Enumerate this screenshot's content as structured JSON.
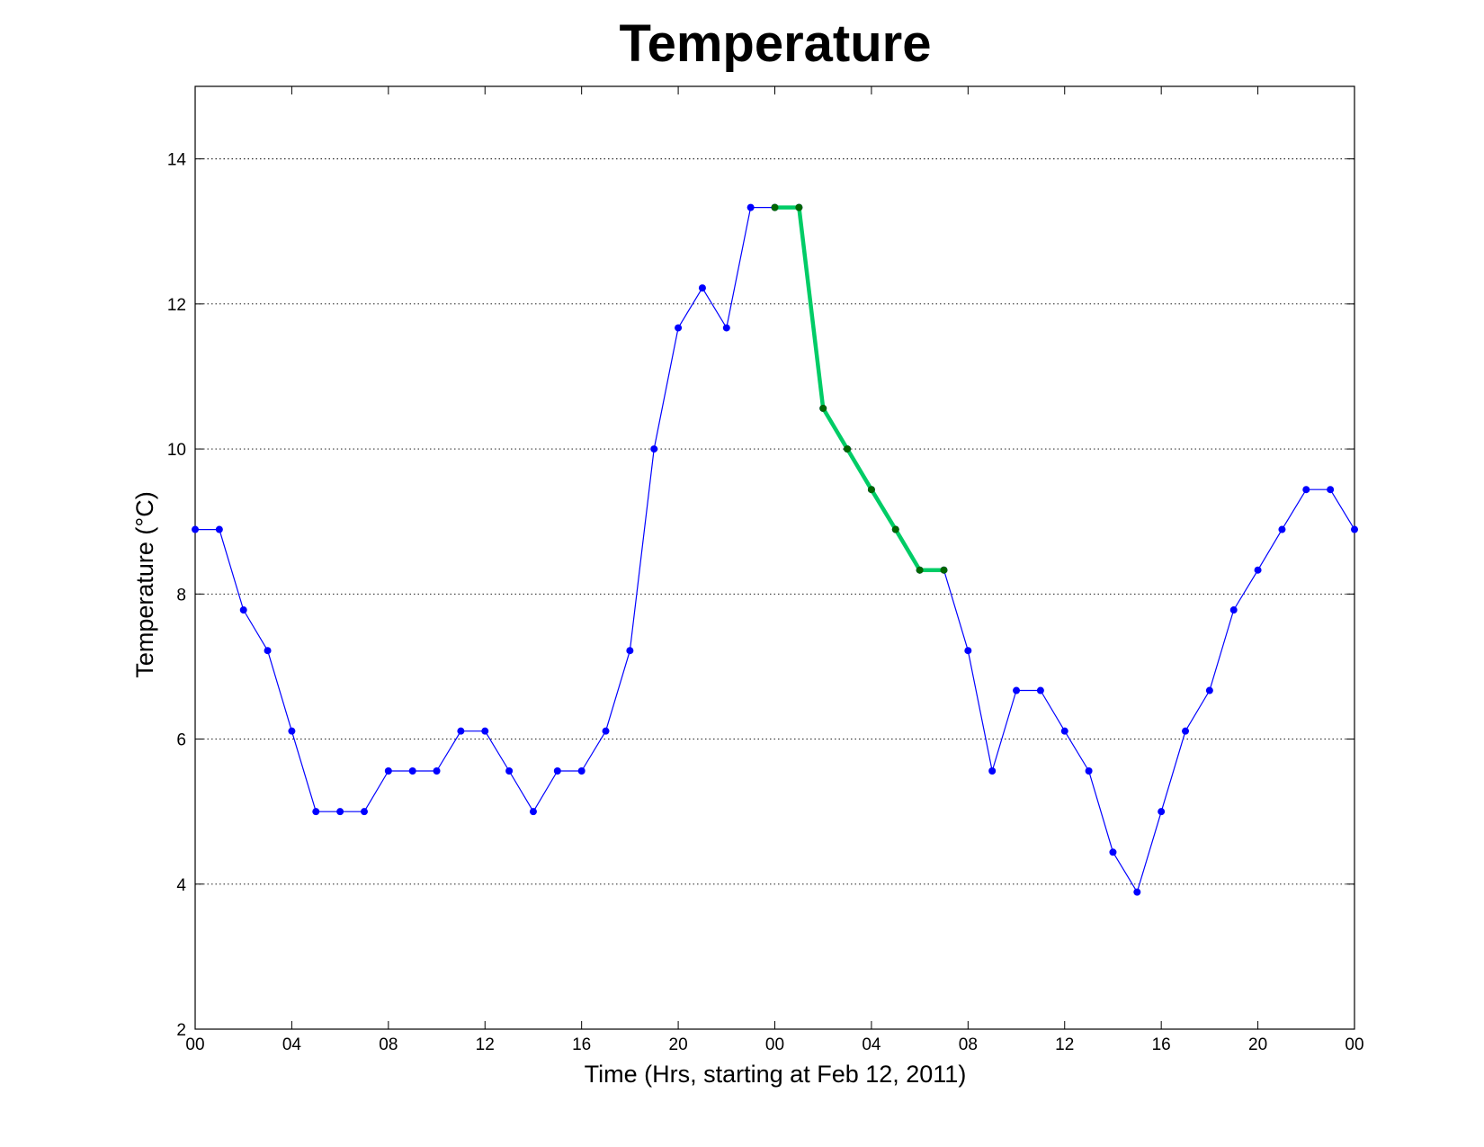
{
  "chart_data": {
    "type": "line",
    "title": "Temperature",
    "xlabel": "Time (Hrs, starting at Feb 12, 2011)",
    "ylabel": "Temperature (°C)",
    "xlim": [
      0,
      48
    ],
    "ylim": [
      2,
      15
    ],
    "x_ticks": [
      0,
      4,
      8,
      12,
      16,
      20,
      24,
      28,
      32,
      36,
      40,
      44,
      48
    ],
    "x_tick_labels": [
      "00",
      "04",
      "08",
      "12",
      "16",
      "20",
      "00",
      "04",
      "08",
      "12",
      "16",
      "20",
      "00"
    ],
    "y_ticks": [
      2,
      4,
      6,
      8,
      10,
      12,
      14
    ],
    "y_tick_labels": [
      "2",
      "4",
      "6",
      "8",
      "10",
      "12",
      "14"
    ],
    "grid": "y-dotted",
    "series": [
      {
        "color": "#0000ff",
        "marker": "dot",
        "x": [
          0,
          1,
          2,
          3,
          4,
          5,
          6,
          7,
          8,
          9,
          10,
          11,
          12,
          13,
          14,
          15,
          16,
          17,
          18,
          19,
          20,
          21,
          22,
          23,
          24,
          25,
          26,
          27,
          28,
          29,
          30,
          31,
          32,
          33,
          34,
          35,
          36,
          37,
          38,
          39,
          40,
          41,
          42,
          43,
          44,
          45,
          46,
          47,
          48
        ],
        "values": [
          8.89,
          8.89,
          7.78,
          7.22,
          6.11,
          5.0,
          5.0,
          5.0,
          5.56,
          5.56,
          5.56,
          6.11,
          6.11,
          5.56,
          5.0,
          5.56,
          5.56,
          6.11,
          7.22,
          10.0,
          11.67,
          12.22,
          11.67,
          13.33,
          13.33,
          13.33,
          10.56,
          10.0,
          9.44,
          8.89,
          8.33,
          8.33,
          7.22,
          5.56,
          6.67,
          6.67,
          6.11,
          5.56,
          4.44,
          3.89,
          5.0,
          6.11,
          6.67,
          7.78,
          8.33,
          8.89,
          9.44,
          9.44,
          8.89
        ]
      },
      {
        "color": "#00cc66",
        "marker_color": "#006600",
        "marker": "dot",
        "x": [
          24,
          25,
          26,
          27,
          28,
          29,
          30,
          31
        ],
        "values": [
          13.33,
          13.33,
          10.56,
          10.0,
          9.44,
          8.89,
          8.33,
          8.33
        ]
      }
    ]
  }
}
